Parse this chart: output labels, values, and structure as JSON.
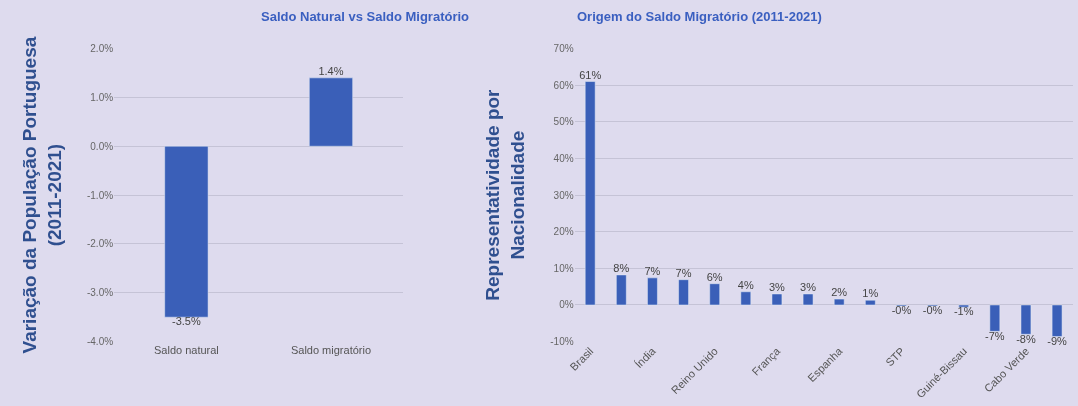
{
  "chart_data": [
    {
      "type": "bar",
      "title": "Saldo Natural vs Saldo Migratório",
      "ylabel": "Variação da População Portuguesa\n(2011-2021)",
      "categories": [
        "Saldo natural",
        "Saldo migratório"
      ],
      "values": [
        -3.5,
        1.4
      ],
      "color": "#3a5fb8",
      "value_labels": [
        "-3.5%",
        "1.4%"
      ],
      "ylim": [
        -4,
        2
      ],
      "yticks": [
        {
          "value": -4,
          "label": "-4.0%"
        },
        {
          "value": -3,
          "label": "-3.0%"
        },
        {
          "value": -2,
          "label": "-2.0%"
        },
        {
          "value": -1,
          "label": "-1.0%"
        },
        {
          "value": 0,
          "label": "0.0%"
        },
        {
          "value": 1,
          "label": "1.0%"
        },
        {
          "value": 2,
          "label": "2.0%"
        }
      ],
      "grid": "y"
    },
    {
      "type": "bar",
      "title": "Origem do Saldo Migratório (2011-2021)",
      "ylabel": "Representatividade por\nNacionalidade",
      "categories": [
        "Brasil",
        null,
        "Índia",
        null,
        "Reino Unido",
        null,
        "França",
        null,
        "Espanha",
        null,
        "STP",
        null,
        "Guiné-Bissau",
        null,
        "Cabo Verde",
        null
      ],
      "values": [
        61,
        8.2,
        7.4,
        6.9,
        5.8,
        3.6,
        3.0,
        3.0,
        1.6,
        1.3,
        -0.3,
        -0.3,
        -0.6,
        -7.2,
        -8.0,
        -8.6
      ],
      "color": "#3a5fb8",
      "value_labels": [
        "61%",
        "8%",
        "7%",
        "7%",
        "6%",
        "4%",
        "3%",
        "3%",
        "2%",
        "1%",
        "-0%",
        "-0%",
        "-1%",
        "-7%",
        "-8%",
        "-9%"
      ],
      "ylim": [
        -10,
        70
      ],
      "yticks": [
        {
          "value": -10,
          "label": "-10%"
        },
        {
          "value": 0,
          "label": "0%"
        },
        {
          "value": 10,
          "label": "10%"
        },
        {
          "value": 20,
          "label": "20%"
        },
        {
          "value": 30,
          "label": "30%"
        },
        {
          "value": 40,
          "label": "40%"
        },
        {
          "value": 50,
          "label": "50%"
        },
        {
          "value": 60,
          "label": "60%"
        },
        {
          "value": 70,
          "label": "70%"
        }
      ],
      "grid": "y"
    }
  ]
}
